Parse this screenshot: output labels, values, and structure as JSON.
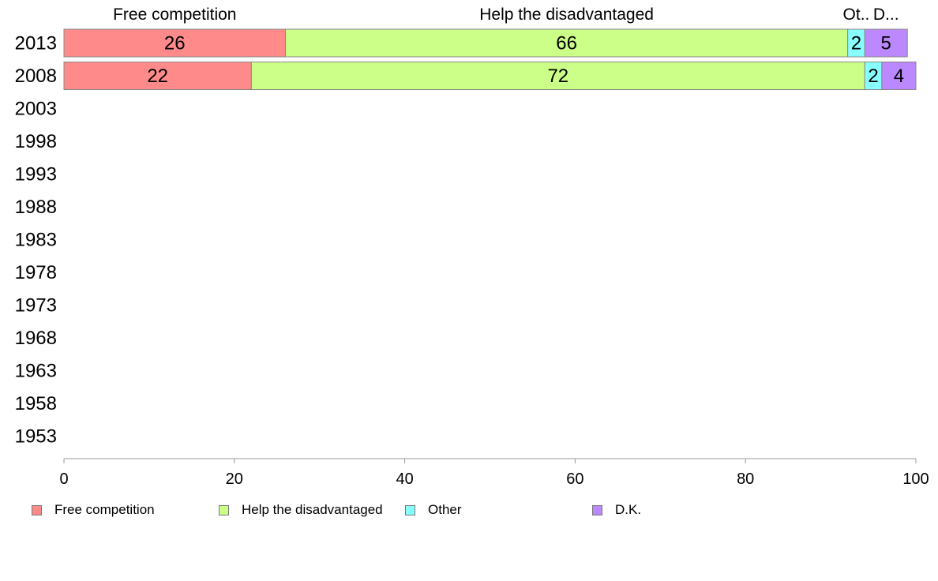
{
  "chart_data": {
    "type": "bar",
    "orientation": "horizontal",
    "stacked": true,
    "categories": [
      "2013",
      "2008",
      "2003",
      "1998",
      "1993",
      "1988",
      "1983",
      "1978",
      "1973",
      "1968",
      "1963",
      "1958",
      "1953"
    ],
    "series": [
      {
        "name": "Free competition",
        "values": [
          26,
          22,
          null,
          null,
          null,
          null,
          null,
          null,
          null,
          null,
          null,
          null,
          null
        ],
        "color": "#ff8a8a"
      },
      {
        "name": "Help the disadvantaged",
        "values": [
          66,
          72,
          null,
          null,
          null,
          null,
          null,
          null,
          null,
          null,
          null,
          null,
          null
        ],
        "color": "#ccff88"
      },
      {
        "name": "Other",
        "values": [
          2,
          2,
          null,
          null,
          null,
          null,
          null,
          null,
          null,
          null,
          null,
          null,
          null
        ],
        "color": "#88ffff"
      },
      {
        "name": "D.K.",
        "values": [
          5,
          4,
          null,
          null,
          null,
          null,
          null,
          null,
          null,
          null,
          null,
          null,
          null
        ],
        "color": "#bb88ff"
      }
    ],
    "top_labels": [
      "Free competition",
      "Help the disadvantaged",
      "Ot..",
      "D..."
    ],
    "xlim": [
      0,
      100
    ],
    "xticks": [
      "0",
      "20",
      "40",
      "60",
      "80",
      "100"
    ],
    "grid": false,
    "legend_position": "bottom"
  }
}
